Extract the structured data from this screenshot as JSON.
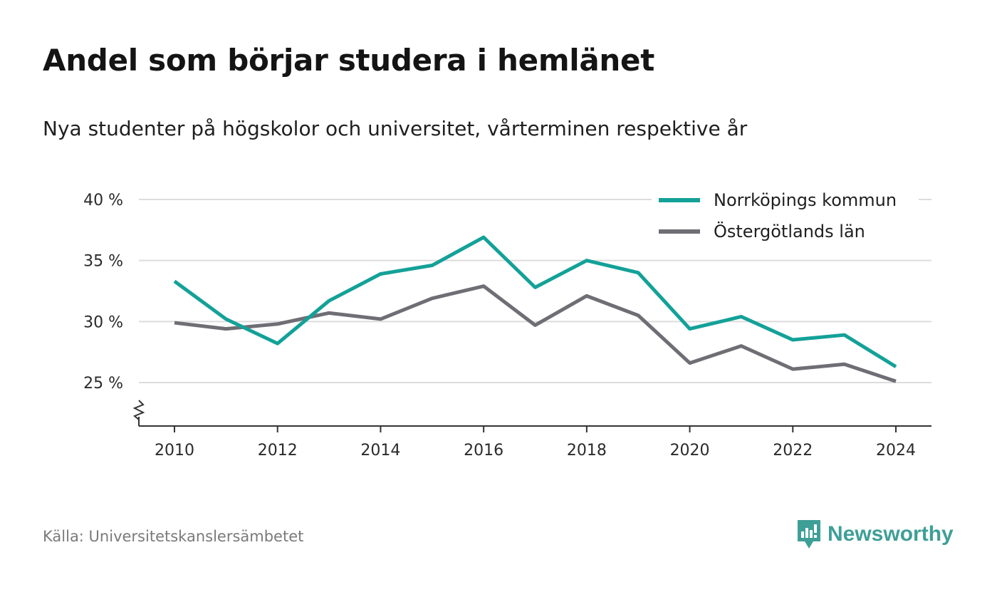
{
  "title": "Andel som börjar studera i hemlänet",
  "subtitle": "Nya studenter på högskolor och universitet, vårterminen respektive år",
  "source": "Källa: Universitetskanslersämbetet",
  "brand": "Newsworthy",
  "colors": {
    "accent": "#13a198",
    "secondary": "#6e6e74",
    "brand": "#3e9f97"
  },
  "chart_data": {
    "type": "line",
    "x": [
      2010,
      2011,
      2012,
      2013,
      2014,
      2015,
      2016,
      2017,
      2018,
      2019,
      2020,
      2021,
      2022,
      2023,
      2024
    ],
    "xticks": [
      "2010",
      "2012",
      "2014",
      "2016",
      "2018",
      "2020",
      "2022",
      "2024"
    ],
    "yticks": [
      "25 %",
      "30 %",
      "35 %",
      "40 %"
    ],
    "ylim": [
      21.5,
      40
    ],
    "axis_break": true,
    "grid": true,
    "legend_position": "top-right",
    "series": [
      {
        "name": "Norrköpings kommun",
        "color": "#13a198",
        "values": [
          33.3,
          30.2,
          28.2,
          31.7,
          33.9,
          34.6,
          36.9,
          32.8,
          35.0,
          34.0,
          29.4,
          30.4,
          28.5,
          28.9,
          26.3
        ]
      },
      {
        "name": "Östergötlands län",
        "color": "#6e6e74",
        "values": [
          29.9,
          29.4,
          29.8,
          30.7,
          30.2,
          31.9,
          32.9,
          29.7,
          32.1,
          30.5,
          26.6,
          28.0,
          26.1,
          26.5,
          25.1
        ]
      }
    ]
  }
}
